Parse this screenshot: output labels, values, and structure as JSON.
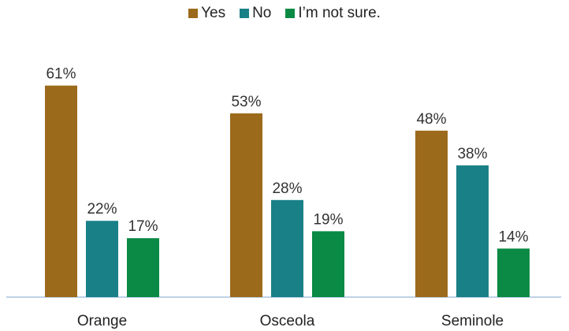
{
  "chart_data": {
    "type": "bar",
    "title": "",
    "xlabel": "",
    "ylabel": "",
    "categories": [
      "Orange",
      "Osceola",
      "Seminole"
    ],
    "series": [
      {
        "name": "Yes",
        "values": [
          61,
          53,
          48
        ],
        "labels": [
          "61%",
          "53%",
          "48%"
        ],
        "color": "#9C6A1B"
      },
      {
        "name": "No",
        "values": [
          22,
          28,
          38
        ],
        "labels": [
          "22%",
          "28%",
          "38%"
        ],
        "color": "#1A8088"
      },
      {
        "name": "I’m not sure.",
        "values": [
          17,
          19,
          14
        ],
        "labels": [
          "17%",
          "19%",
          "14%"
        ],
        "color": "#0A8A45"
      }
    ],
    "ylim": [
      0,
      75
    ],
    "grid": false,
    "legend_position": "top-center",
    "axis_color": "#A9C4E0"
  }
}
